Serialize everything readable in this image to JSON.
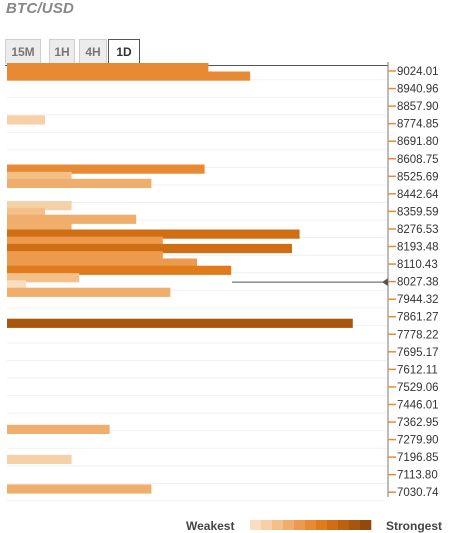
{
  "title": "BTC/USD",
  "tabs": [
    {
      "label": "15M",
      "active": false
    },
    {
      "label": "1H",
      "active": false
    },
    {
      "label": "4H",
      "active": false
    },
    {
      "label": "1D",
      "active": true
    }
  ],
  "legend": {
    "weakest_label": "Weakest",
    "strongest_label": "Strongest",
    "gradient_colors": [
      "#f9dfc0",
      "#f6d0a6",
      "#f3c08a",
      "#f0ae6c",
      "#ec9a4e",
      "#e88a34",
      "#e07b1c",
      "#d16e14",
      "#bd6110",
      "#a8560e",
      "#93490b"
    ]
  },
  "chart_data": {
    "type": "bar",
    "orientation": "horizontal",
    "price_levels": [
      "9024.01",
      "8940.96",
      "8857.90",
      "8774.85",
      "8691.80",
      "8608.75",
      "8525.69",
      "8442.64",
      "8359.59",
      "8276.53",
      "8193.48",
      "8110.43",
      "8027.38",
      "7944.32",
      "7861.27",
      "7778.22",
      "7695.17",
      "7612.11",
      "7529.06",
      "7446.01",
      "7362.95",
      "7279.90",
      "7196.85",
      "7113.80",
      "7030.74"
    ],
    "current_price": 8027.38,
    "x_range": [
      0,
      100
    ],
    "bars": [
      {
        "price": 9040,
        "strength": 53,
        "color": "#e88a34"
      },
      {
        "price": 9000,
        "strength": 64,
        "color": "#e88a34"
      },
      {
        "price": 8792,
        "strength": 10,
        "color": "#f6d0a6"
      },
      {
        "price": 8560,
        "strength": 52,
        "color": "#e88a34"
      },
      {
        "price": 8525,
        "strength": 17,
        "color": "#f3c08a"
      },
      {
        "price": 8492,
        "strength": 38,
        "color": "#f0ae6c"
      },
      {
        "price": 8387,
        "strength": 17,
        "color": "#f6d0a6"
      },
      {
        "price": 8355,
        "strength": 10,
        "color": "#f3c08a"
      },
      {
        "price": 8322,
        "strength": 34,
        "color": "#f0ae6c"
      },
      {
        "price": 8287,
        "strength": 17,
        "color": "#f0ae6c"
      },
      {
        "price": 8252,
        "strength": 77,
        "color": "#d16e14"
      },
      {
        "price": 8218,
        "strength": 41,
        "color": "#ec9a4e"
      },
      {
        "price": 8184,
        "strength": 75,
        "color": "#d16e14"
      },
      {
        "price": 8150,
        "strength": 41,
        "color": "#ec9a4e"
      },
      {
        "price": 8115,
        "strength": 50,
        "color": "#ec9a4e"
      },
      {
        "price": 8081,
        "strength": 59,
        "color": "#e07b1c"
      },
      {
        "price": 8046,
        "strength": 19,
        "color": "#f3c08a"
      },
      {
        "price": 8012,
        "strength": 5,
        "color": "#f9dfc0"
      },
      {
        "price": 7977,
        "strength": 43,
        "color": "#f0ae6c"
      },
      {
        "price": 7830,
        "strength": 91,
        "color": "#a8560e"
      },
      {
        "price": 7328,
        "strength": 27,
        "color": "#f0ae6c"
      },
      {
        "price": 7186,
        "strength": 17,
        "color": "#f6d0a6"
      },
      {
        "price": 7046,
        "strength": 38,
        "color": "#f0ae6c"
      }
    ]
  }
}
